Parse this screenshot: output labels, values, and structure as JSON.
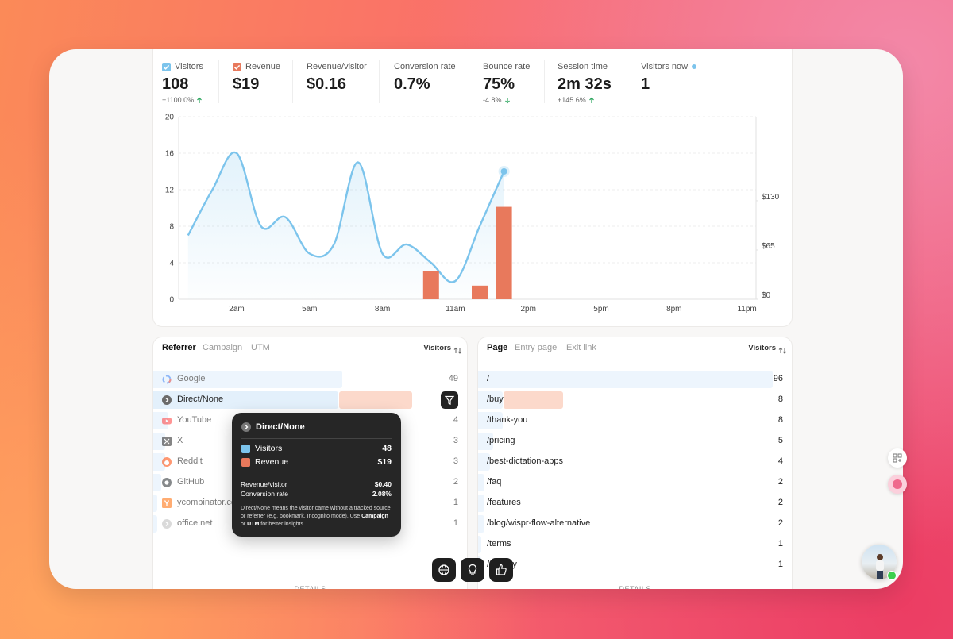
{
  "metrics": [
    {
      "value": "108",
      "change": "+1100.0%",
      "trend": "up"
    },
    {
      "value": "$19"
    },
    {
      "label": "Revenue/visitor",
      "value": "$0.16"
    },
    {
      "label": "Conversion rate",
      "value": "0.7%"
    },
    {
      "label": "Bounce rate",
      "value": "75%",
      "change": "-4.8%",
      "trend": "down"
    },
    {
      "label": "Session time",
      "value": "2m 32s",
      "change": "+145.6%",
      "trend": "up"
    },
    {
      "label": "Visitors now",
      "value": "1"
    }
  ],
  "chart": {
    "type": "line",
    "categories": [
      null,
      null,
      "2am",
      null,
      null,
      "5am",
      null,
      null,
      "8am",
      null,
      null,
      "11am",
      null,
      null,
      "2pm",
      null,
      null,
      "5pm",
      null,
      null,
      "8pm",
      null,
      null,
      "11pm"
    ],
    "series": [
      {
        "name": "Visitors",
        "color": "#7cc4ec",
        "values": [
          7,
          12,
          16,
          8,
          9,
          5,
          6,
          15,
          5,
          6,
          4,
          2,
          8,
          14,
          null,
          null,
          null,
          null,
          null,
          null,
          null,
          null,
          null,
          null
        ]
      },
      {
        "name": "Revenue",
        "color": "#e8795c",
        "type": "bar",
        "axis": "y2",
        "values": [
          null,
          null,
          null,
          null,
          null,
          null,
          null,
          null,
          null,
          null,
          37,
          null,
          18,
          122,
          null,
          null,
          null,
          null,
          null,
          null,
          null,
          null,
          null,
          null
        ]
      }
    ],
    "ylim": [
      0,
      20
    ],
    "yticks": [
      0,
      4,
      8,
      12,
      16,
      20
    ],
    "y2lim": [
      0,
      241
    ],
    "y2ticks": [
      {
        "value": 0,
        "label": "$0"
      },
      {
        "value": 65,
        "label": "$65"
      },
      {
        "value": 130,
        "label": "$130"
      }
    ],
    "grid": true
  },
  "referrer": {
    "tabs": [
      "Referrer",
      "Campaign",
      "UTM"
    ],
    "sort_label": "Visitors",
    "rows": [
      {
        "name": "Google",
        "visitors": 49
      },
      {
        "name": "Direct/None"
      },
      {
        "name": "YouTube",
        "visitors": 4
      },
      {
        "name": "X",
        "visitors": 3
      },
      {
        "name": "Reddit",
        "visitors": 3
      },
      {
        "name": "GitHub",
        "visitors": 2
      },
      {
        "name": "ycombinator.com",
        "visitors": 1
      },
      {
        "name": "office.net",
        "visitors": 1
      }
    ],
    "details": "Details"
  },
  "pages": {
    "tabs": [
      "Page",
      "Entry page",
      "Exit link"
    ],
    "sort_label": "Visitors",
    "rows": [
      {
        "name": "/",
        "visitors": 96
      },
      {
        "name": "/buy",
        "visitors": 8
      },
      {
        "name": "/thank-you",
        "visitors": 8
      },
      {
        "name": "/pricing",
        "visitors": 5
      },
      {
        "name": "/best-dictation-apps",
        "visitors": 4
      },
      {
        "name": "/faq",
        "visitors": 2
      },
      {
        "name": "/features",
        "visitors": 2
      },
      {
        "name": "/blog/wispr-flow-alternative",
        "visitors": 2
      },
      {
        "name": "/terms",
        "visitors": 1
      },
      {
        "name": "/privacy",
        "visitors": 1
      }
    ],
    "details": "Details"
  },
  "tooltip": {
    "title": "Direct/None",
    "visitors_label": "Visitors",
    "visitors": 48,
    "revenue_label": "Revenue",
    "revenue": "$19",
    "stats": [
      {
        "label": "Revenue/visitor",
        "value": "$0.40"
      },
      {
        "label": "Conversion rate",
        "value": "2.08%"
      }
    ],
    "note": [
      "Direct/None means the visitor came without a tracked source or referrer (e.g. bookmark, Incognito mode). Use ",
      "Campaign",
      " or ",
      "UTM",
      " for better insights."
    ]
  }
}
